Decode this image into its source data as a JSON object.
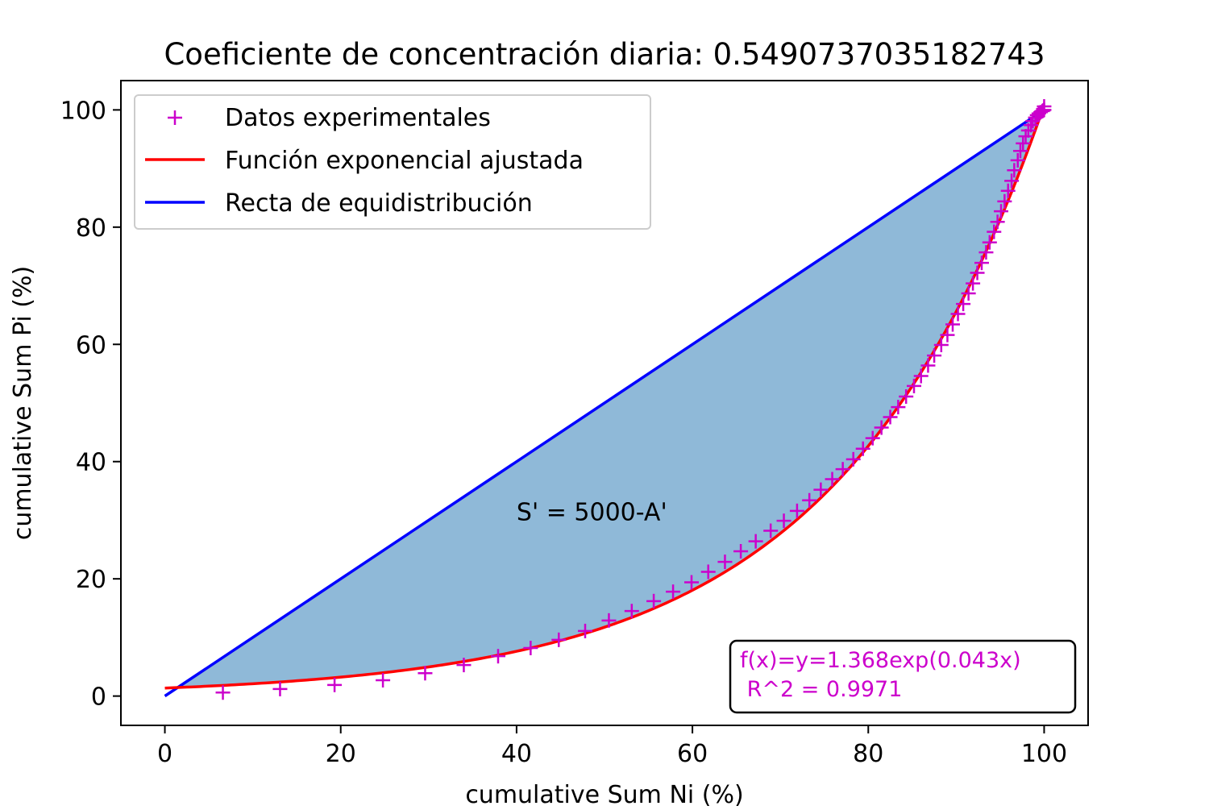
{
  "chart_data": {
    "type": "line",
    "title": "Coeficiente de concentración diaria: 0.5490737035182743",
    "xlabel": "cumulative Sum Ni (%)",
    "ylabel": "cumulative Sum Pi (%)",
    "xlim": [
      -5,
      105
    ],
    "ylim": [
      -5,
      105
    ],
    "xticks": [
      0,
      20,
      40,
      60,
      80,
      100
    ],
    "yticks": [
      0,
      20,
      40,
      60,
      80,
      100
    ],
    "grid": false,
    "legend_position": "top-left",
    "shaded_area_color": "#8fb9d8",
    "series": [
      {
        "name": "Datos experimentales",
        "kind": "scatter",
        "marker": "+",
        "color": "#cc00cc",
        "x": [
          6.6,
          13.1,
          19.3,
          24.8,
          29.6,
          34.0,
          37.9,
          41.6,
          44.8,
          47.8,
          50.5,
          53.1,
          55.6,
          57.8,
          59.9,
          61.8,
          63.7,
          65.5,
          67.2,
          68.9,
          70.4,
          71.9,
          73.3,
          74.6,
          75.9,
          77.1,
          78.3,
          79.4,
          80.5,
          81.5,
          82.5,
          83.4,
          84.3,
          85.2,
          86.0,
          86.8,
          87.5,
          88.3,
          89.0,
          89.6,
          90.2,
          90.8,
          91.4,
          91.9,
          92.4,
          92.9,
          93.4,
          93.8,
          94.3,
          94.7,
          95.1,
          95.5,
          95.9,
          96.3,
          96.6,
          97.0,
          97.3,
          97.6,
          97.9,
          98.2,
          98.5,
          98.7,
          99.0,
          99.2,
          99.4,
          99.6,
          99.8,
          99.9,
          100.0,
          100.0
        ],
        "y": [
          0.6,
          1.2,
          1.9,
          2.7,
          3.9,
          5.3,
          6.8,
          8.2,
          9.6,
          11.1,
          12.9,
          14.5,
          16.2,
          17.8,
          19.4,
          21.2,
          22.9,
          24.7,
          26.4,
          28.2,
          29.9,
          31.6,
          33.4,
          35.2,
          37.0,
          38.7,
          40.4,
          42.2,
          44.0,
          45.8,
          47.6,
          49.3,
          51.1,
          52.9,
          54.6,
          56.4,
          58.1,
          59.9,
          61.6,
          63.4,
          65.2,
          66.9,
          68.7,
          70.4,
          72.2,
          73.9,
          75.7,
          77.4,
          79.2,
          80.9,
          82.7,
          84.4,
          86.2,
          87.9,
          89.7,
          91.4,
          93.0,
          94.3,
          95.5,
          96.5,
          97.4,
          98.1,
          98.7,
          99.1,
          99.4,
          99.6,
          99.8,
          99.9,
          100.0,
          100.6
        ]
      },
      {
        "name": "Función exponencial ajustada",
        "kind": "line",
        "color": "#ff0000",
        "function": {
          "a": 1.368,
          "b": 0.043
        },
        "x_range": [
          0,
          100
        ]
      },
      {
        "name": "Recta de equidistribución",
        "kind": "line",
        "color": "#0000ff",
        "x": [
          0,
          100
        ],
        "y": [
          0,
          100
        ]
      }
    ],
    "annotations": [
      {
        "text": "S' = 5000-A'",
        "x": 40,
        "y": 30
      }
    ],
    "fit_box": {
      "line1": "f(x)=y=1.368exp(0.043x)",
      "line2": " R^2 = 0.9971",
      "color": "#cc00cc"
    }
  }
}
